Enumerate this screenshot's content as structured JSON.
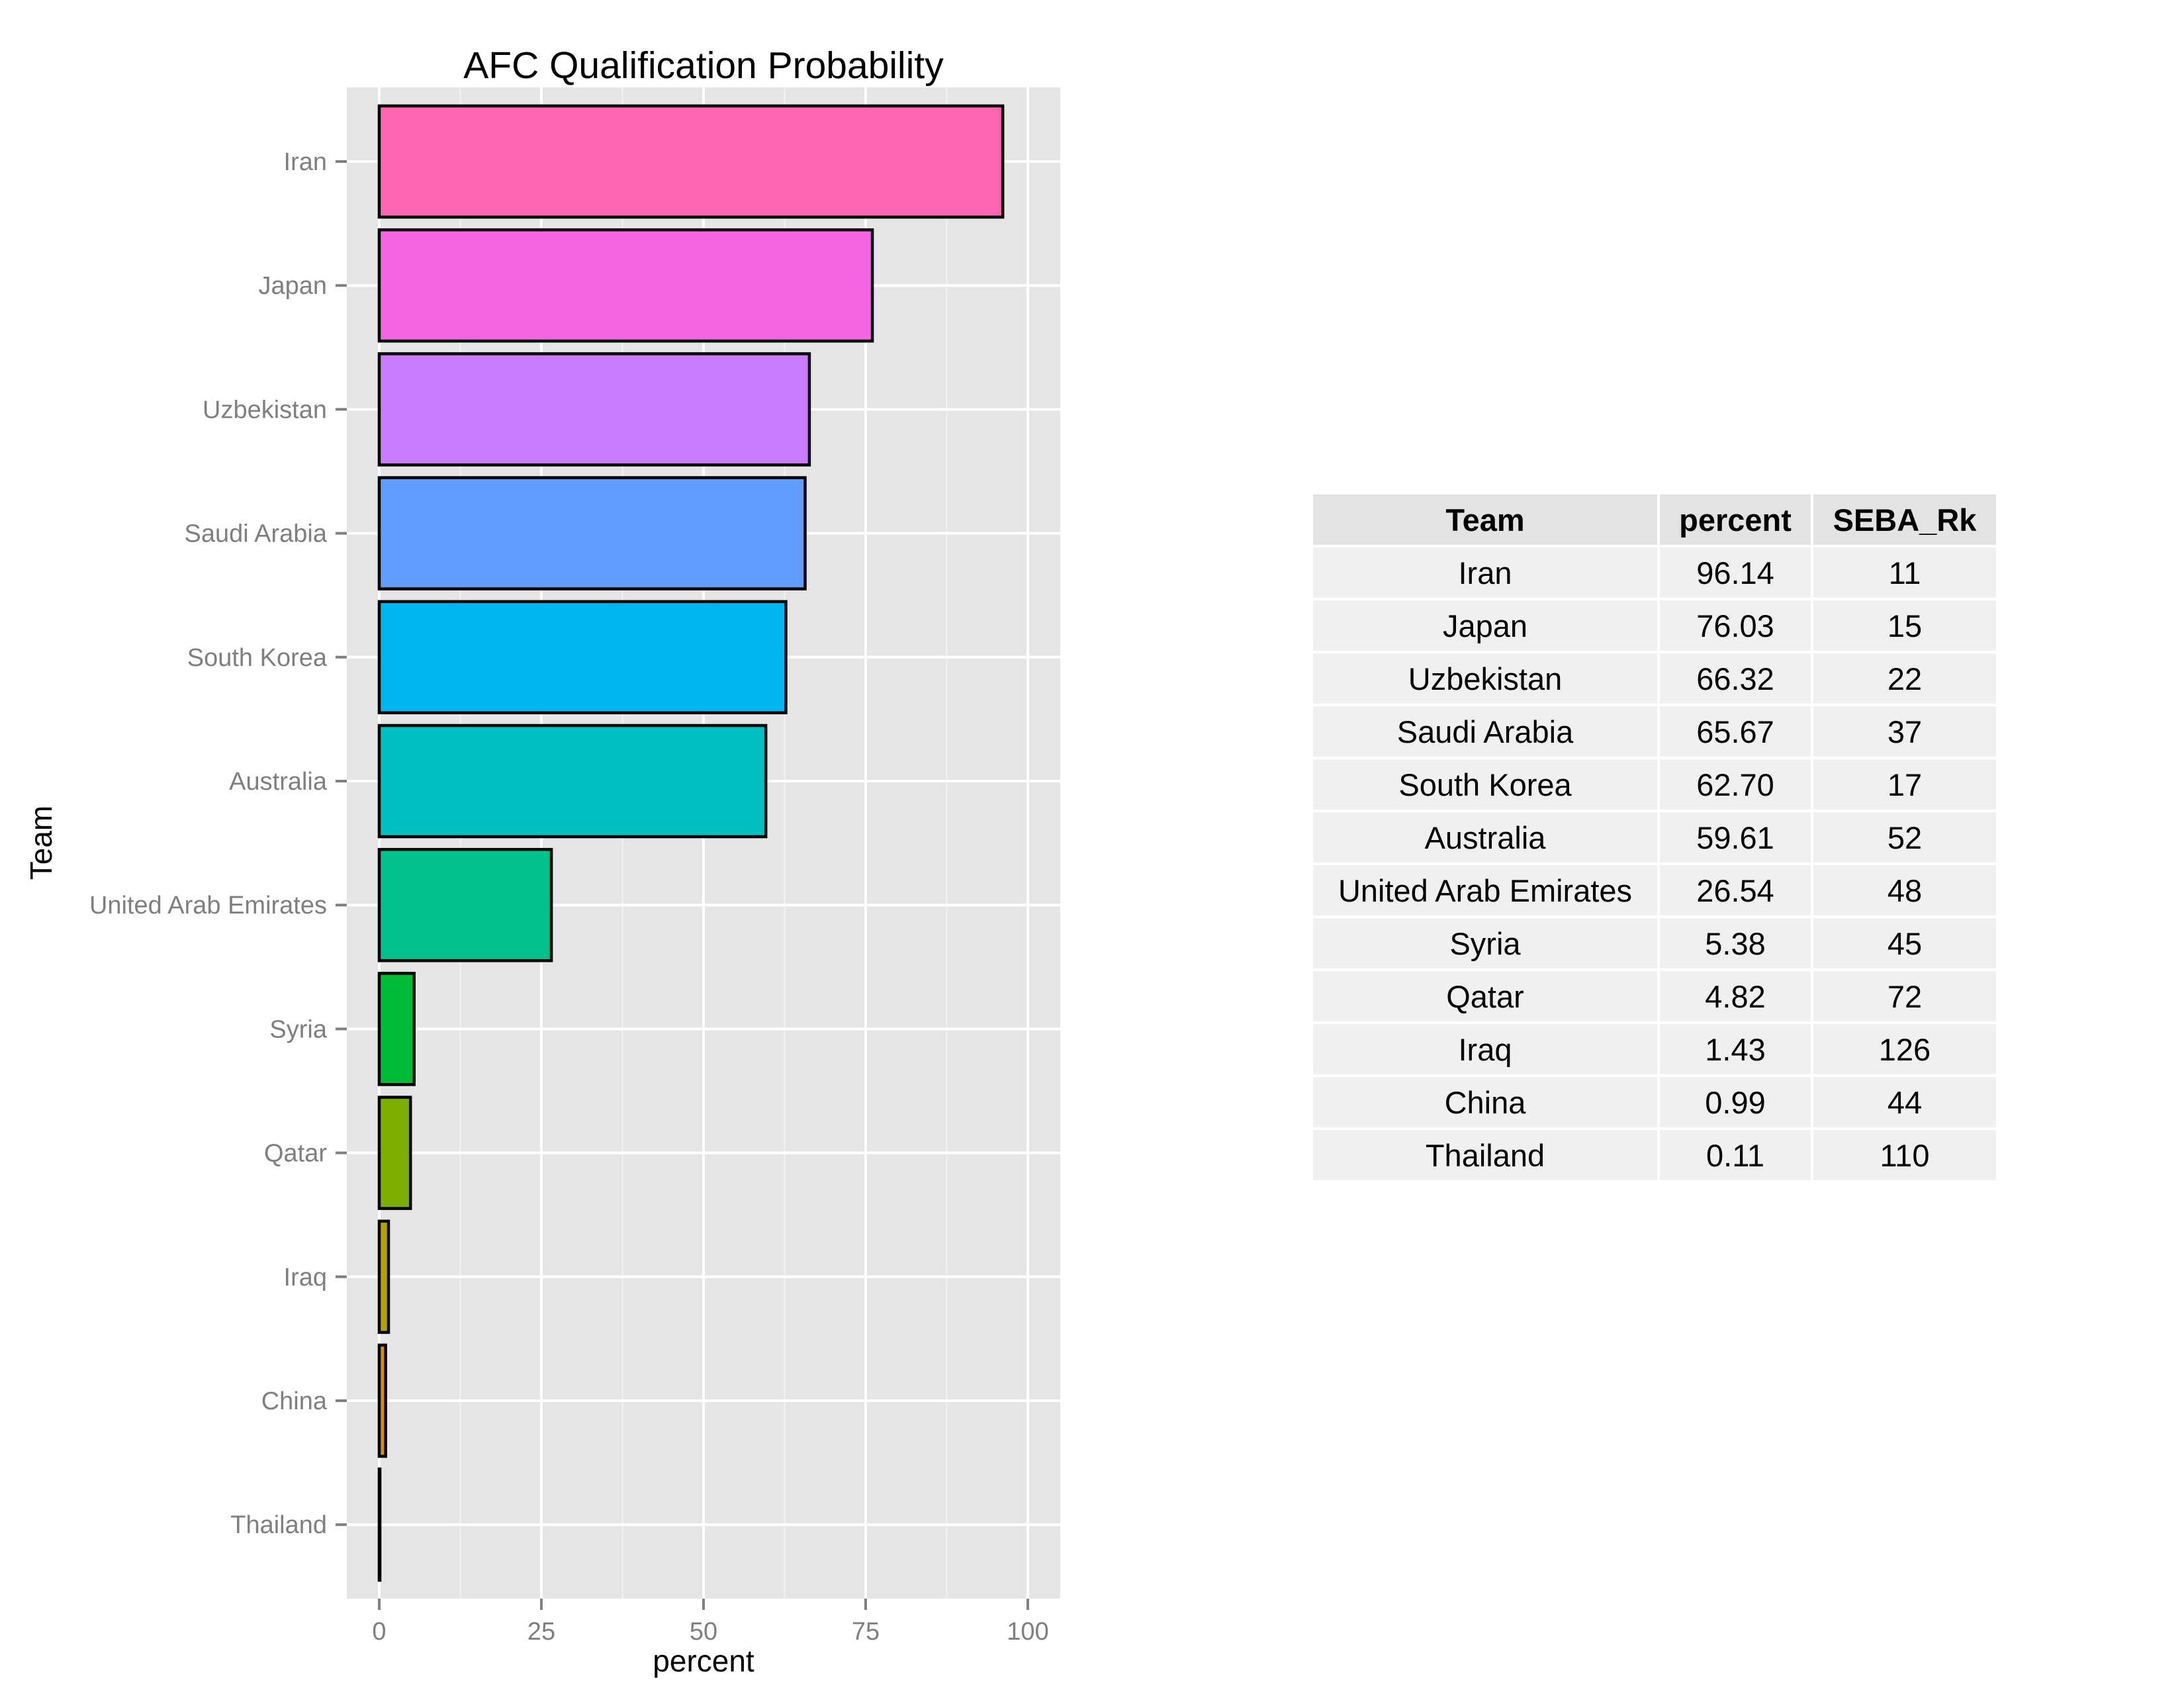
{
  "chart_data": {
    "type": "bar",
    "orientation": "horizontal",
    "title": "AFC Qualification Probability",
    "xlabel": "percent",
    "ylabel": "Team",
    "xlim": [
      -5,
      105
    ],
    "xticks": [
      0,
      25,
      50,
      75,
      100
    ],
    "grid": true,
    "legend": "none",
    "categories": [
      "Iran",
      "Japan",
      "Uzbekistan",
      "Saudi Arabia",
      "South Korea",
      "Australia",
      "United Arab Emirates",
      "Syria",
      "Qatar",
      "Iraq",
      "China",
      "Thailand"
    ],
    "values": [
      96.14,
      76.03,
      66.32,
      65.67,
      62.7,
      59.61,
      26.54,
      5.38,
      4.82,
      1.43,
      0.99,
      0.11
    ],
    "colors": [
      "#FF64B0",
      "#F564E3",
      "#C77CFF",
      "#619CFF",
      "#00B4F0",
      "#00BFC4",
      "#00C08B",
      "#00BA38",
      "#7CAE00",
      "#B79F00",
      "#DE8C00",
      "#F8766D"
    ]
  },
  "table": {
    "headers": [
      "Team",
      "percent",
      "SEBA_Rk"
    ],
    "rows": [
      [
        "Iran",
        "96.14",
        "11"
      ],
      [
        "Japan",
        "76.03",
        "15"
      ],
      [
        "Uzbekistan",
        "66.32",
        "22"
      ],
      [
        "Saudi Arabia",
        "65.67",
        "37"
      ],
      [
        "South Korea",
        "62.70",
        "17"
      ],
      [
        "Australia",
        "59.61",
        "52"
      ],
      [
        "United Arab Emirates",
        "26.54",
        "48"
      ],
      [
        "Syria",
        "5.38",
        "45"
      ],
      [
        "Qatar",
        "4.82",
        "72"
      ],
      [
        "Iraq",
        "1.43",
        "126"
      ],
      [
        "China",
        "0.99",
        "44"
      ],
      [
        "Thailand",
        "0.11",
        "110"
      ]
    ]
  }
}
